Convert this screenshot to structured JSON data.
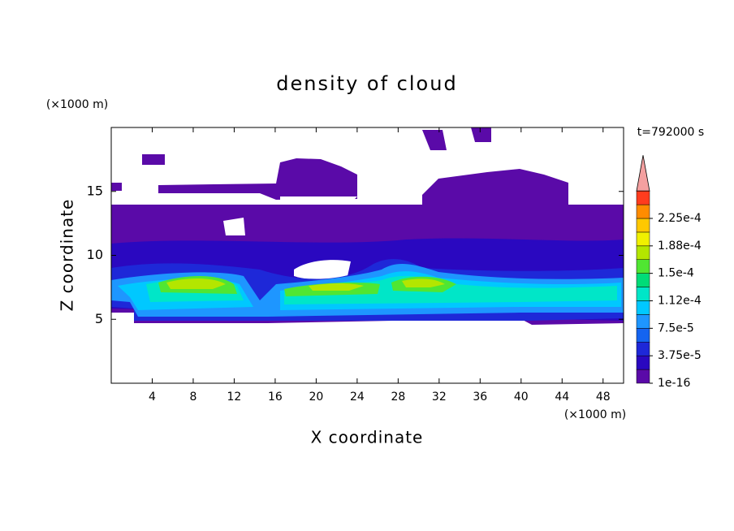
{
  "chart_data": {
    "type": "contour",
    "title": "density of cloud",
    "xlabel": "X coordinate",
    "ylabel": "Z coordinate",
    "x_unit": "(×1000 m)",
    "y_unit": "(×1000 m)",
    "annotation": "t=792000 s",
    "xlim": [
      0,
      50
    ],
    "ylim": [
      0,
      20
    ],
    "xticks": [
      4,
      8,
      12,
      16,
      20,
      24,
      28,
      32,
      36,
      40,
      44,
      48
    ],
    "yticks": [
      5,
      10,
      15
    ],
    "colorbar": {
      "ticks": [
        {
          "value": 1e-16,
          "label": "1e-16"
        },
        {
          "value": 3.75e-05,
          "label": "3.75e-5"
        },
        {
          "value": 7.5e-05,
          "label": "7.5e-5"
        },
        {
          "value": 0.000112,
          "label": "1.12e-4"
        },
        {
          "value": 0.00015,
          "label": "1.5e-4"
        },
        {
          "value": 0.000188,
          "label": "1.88e-4"
        },
        {
          "value": 0.000225,
          "label": "2.25e-4"
        }
      ],
      "colors": [
        "#5a0aa8",
        "#2a08c0",
        "#1e28d8",
        "#1464f0",
        "#1e96ff",
        "#00c8ff",
        "#00e6c8",
        "#00dc78",
        "#50e632",
        "#b4e600",
        "#f0f000",
        "#ffc800",
        "#ff8c00",
        "#ff3c1e"
      ],
      "extend_color": "#f4a0a0"
    }
  }
}
